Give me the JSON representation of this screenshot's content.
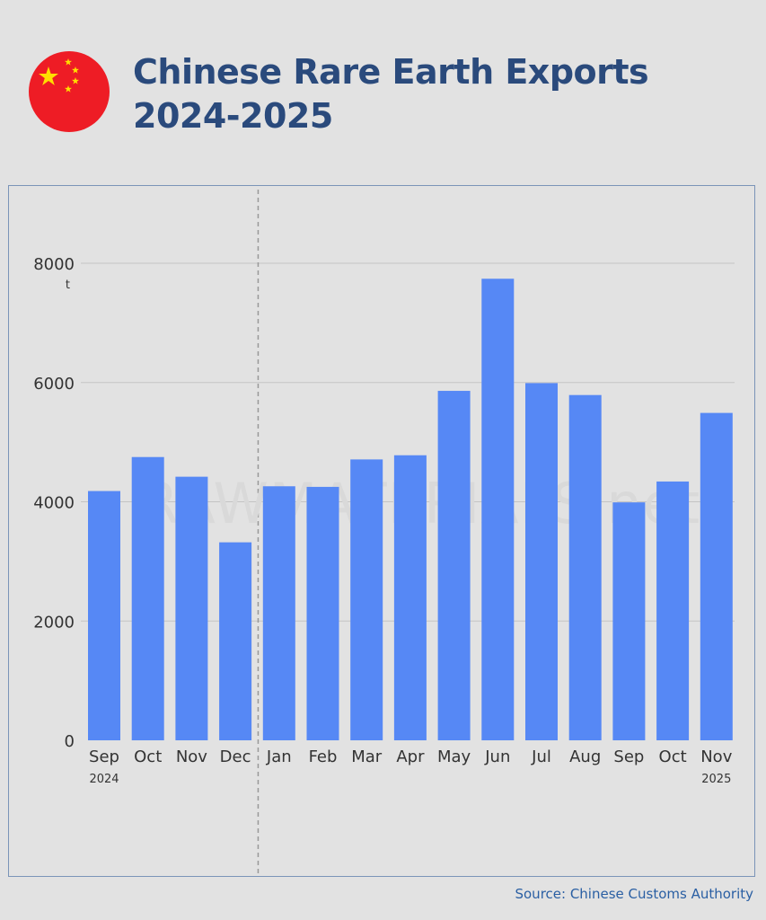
{
  "header": {
    "title_line1": "Chinese Rare Earth Exports",
    "title_line2": "2024-2025"
  },
  "flag": {
    "name": "china-flag-icon",
    "colors": {
      "red": "#ee1c25",
      "star": "#ffde00"
    }
  },
  "watermark": "RAWMATERIALS.net",
  "source": "Source: Chinese Customs Authority",
  "chart_data": {
    "type": "bar",
    "categories": [
      "Sep",
      "Oct",
      "Nov",
      "Dec",
      "Jan",
      "Feb",
      "Mar",
      "Apr",
      "May",
      "Jun",
      "Jul",
      "Aug",
      "Sep",
      "Oct",
      "Nov"
    ],
    "values": [
      4180,
      4750,
      4420,
      3320,
      4260,
      4250,
      4710,
      4780,
      5860,
      7740,
      5990,
      5790,
      3990,
      4340,
      5490
    ],
    "year_labels": [
      {
        "index": 0,
        "text": "2024"
      },
      {
        "index": 14,
        "text": "2025"
      }
    ],
    "y_unit": "t",
    "yticks": [
      0,
      2000,
      4000,
      6000,
      8000
    ],
    "ylim": [
      0,
      8000
    ],
    "year_divider_after_index": 3,
    "bar_color": "#5688f5",
    "grid": true
  }
}
